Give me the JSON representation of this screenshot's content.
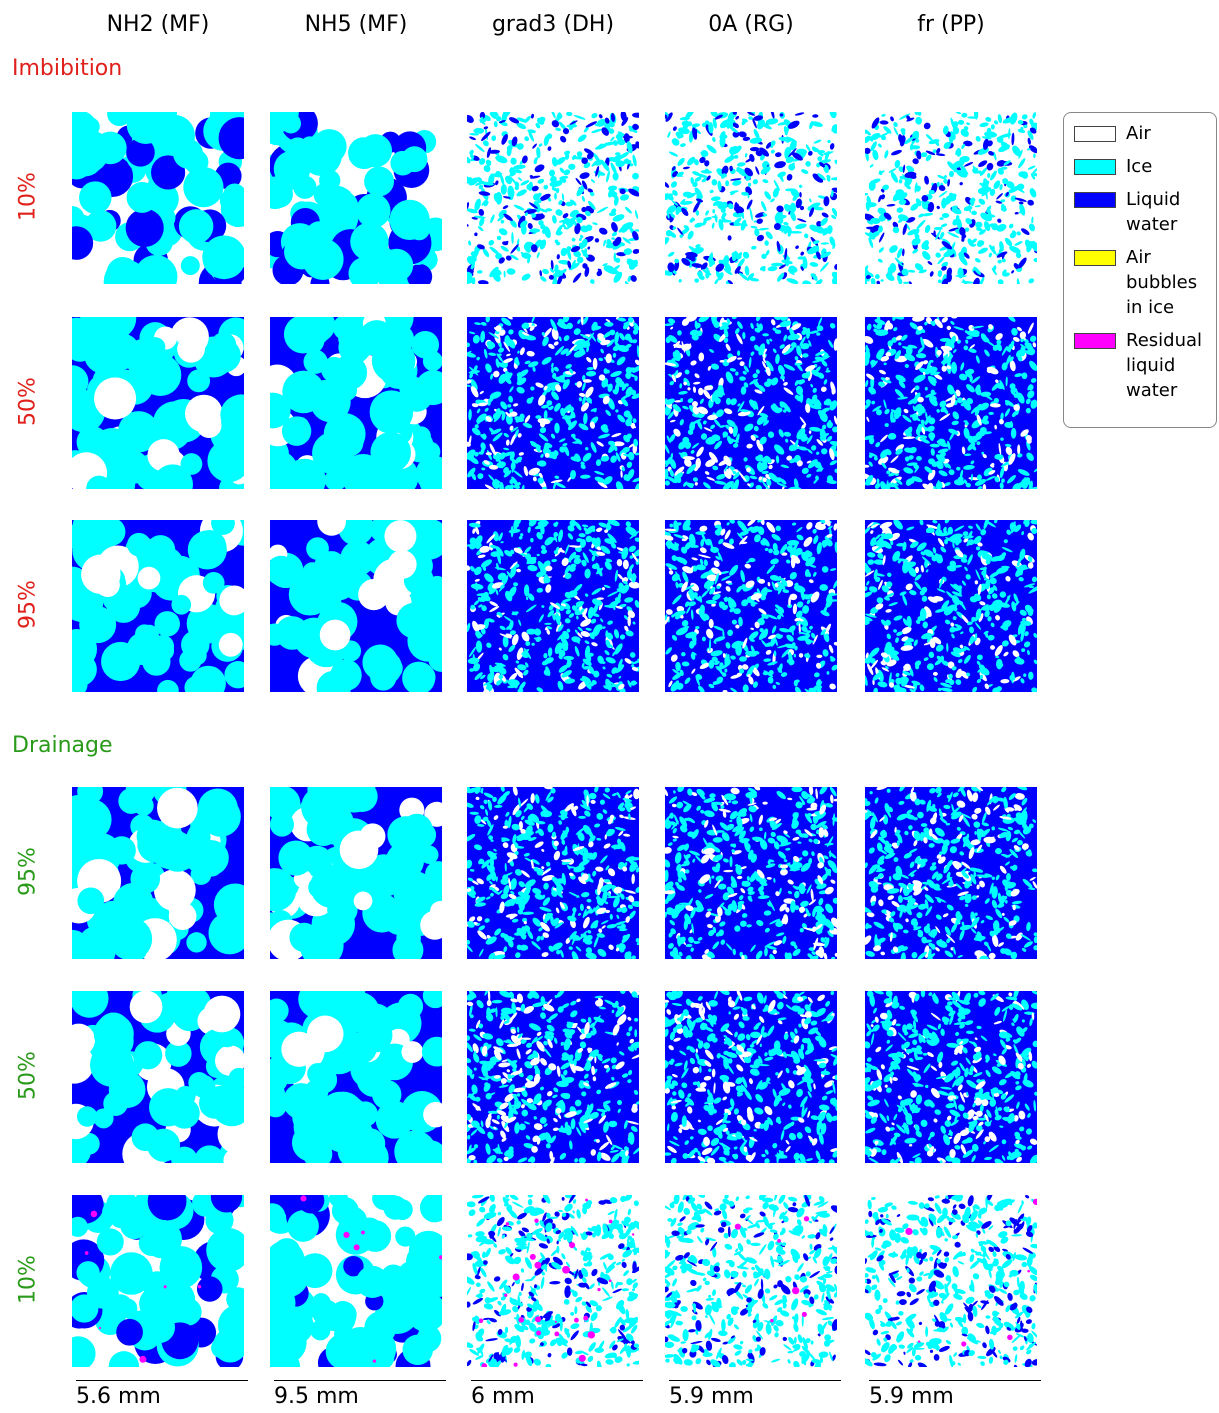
{
  "columns": [
    "NH2 (MF)",
    "NH5 (MF)",
    "grad3 (DH)",
    "0A (RG)",
    "fr (PP)"
  ],
  "sections": [
    {
      "title": "Imbibition",
      "color": "#e0201b",
      "rows": [
        "10%",
        "50%",
        "95%"
      ]
    },
    {
      "title": "Drainage",
      "color": "#2a9a1a",
      "rows": [
        "95%",
        "50%",
        "10%"
      ]
    }
  ],
  "legend": [
    {
      "label": "Air",
      "color": "#ffffff"
    },
    {
      "label": "Ice",
      "color": "#00ffff"
    },
    {
      "label": "Liquid water",
      "color": "#0000ff"
    },
    {
      "label": "Air bubbles in ice",
      "color": "#ffff00"
    },
    {
      "label": "Residual liquid water",
      "color": "#ff00ff"
    }
  ],
  "scale_bars": [
    "5.6 mm",
    "9.5 mm",
    "6 mm",
    "5.9 mm",
    "5.9 mm"
  ]
}
